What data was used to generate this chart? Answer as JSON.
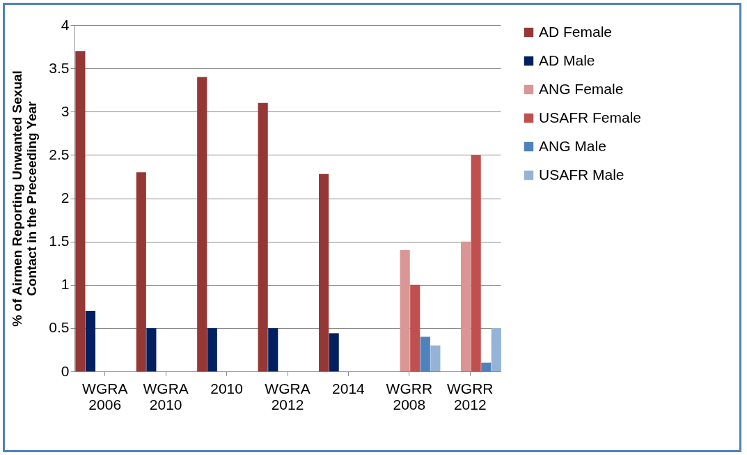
{
  "chart_data": {
    "type": "bar",
    "ylabel": "% of Airmen Reporting Unwanted Sexual Contact in the Preceeding Year",
    "categories": [
      "WGRA 2006",
      "WGRA 2010",
      "2010",
      "WGRA 2012",
      "2014",
      "WGRR 2008",
      "WGRR 2012"
    ],
    "series": [
      {
        "name": "AD Female",
        "color": "#953735",
        "values": [
          3.7,
          2.3,
          3.4,
          3.1,
          2.28,
          null,
          null
        ]
      },
      {
        "name": "AD Male",
        "color": "#002060",
        "values": [
          0.7,
          0.5,
          0.5,
          0.5,
          0.44,
          null,
          null
        ]
      },
      {
        "name": "ANG Female",
        "color": "#d99694",
        "values": [
          null,
          null,
          null,
          null,
          null,
          1.4,
          1.5
        ]
      },
      {
        "name": "USAFR Female",
        "color": "#c0504d",
        "values": [
          null,
          null,
          null,
          null,
          null,
          1.0,
          2.5
        ]
      },
      {
        "name": "ANG Male",
        "color": "#4f81bd",
        "values": [
          null,
          null,
          null,
          null,
          null,
          0.4,
          0.1
        ]
      },
      {
        "name": "USAFR Male",
        "color": "#95b3d7",
        "values": [
          null,
          null,
          null,
          null,
          null,
          0.3,
          0.5
        ]
      }
    ],
    "ylim": [
      0,
      4
    ],
    "yticks": [
      0,
      0.5,
      1,
      1.5,
      2,
      2.5,
      3,
      3.5,
      4
    ],
    "grid": "y",
    "legend": "right"
  }
}
